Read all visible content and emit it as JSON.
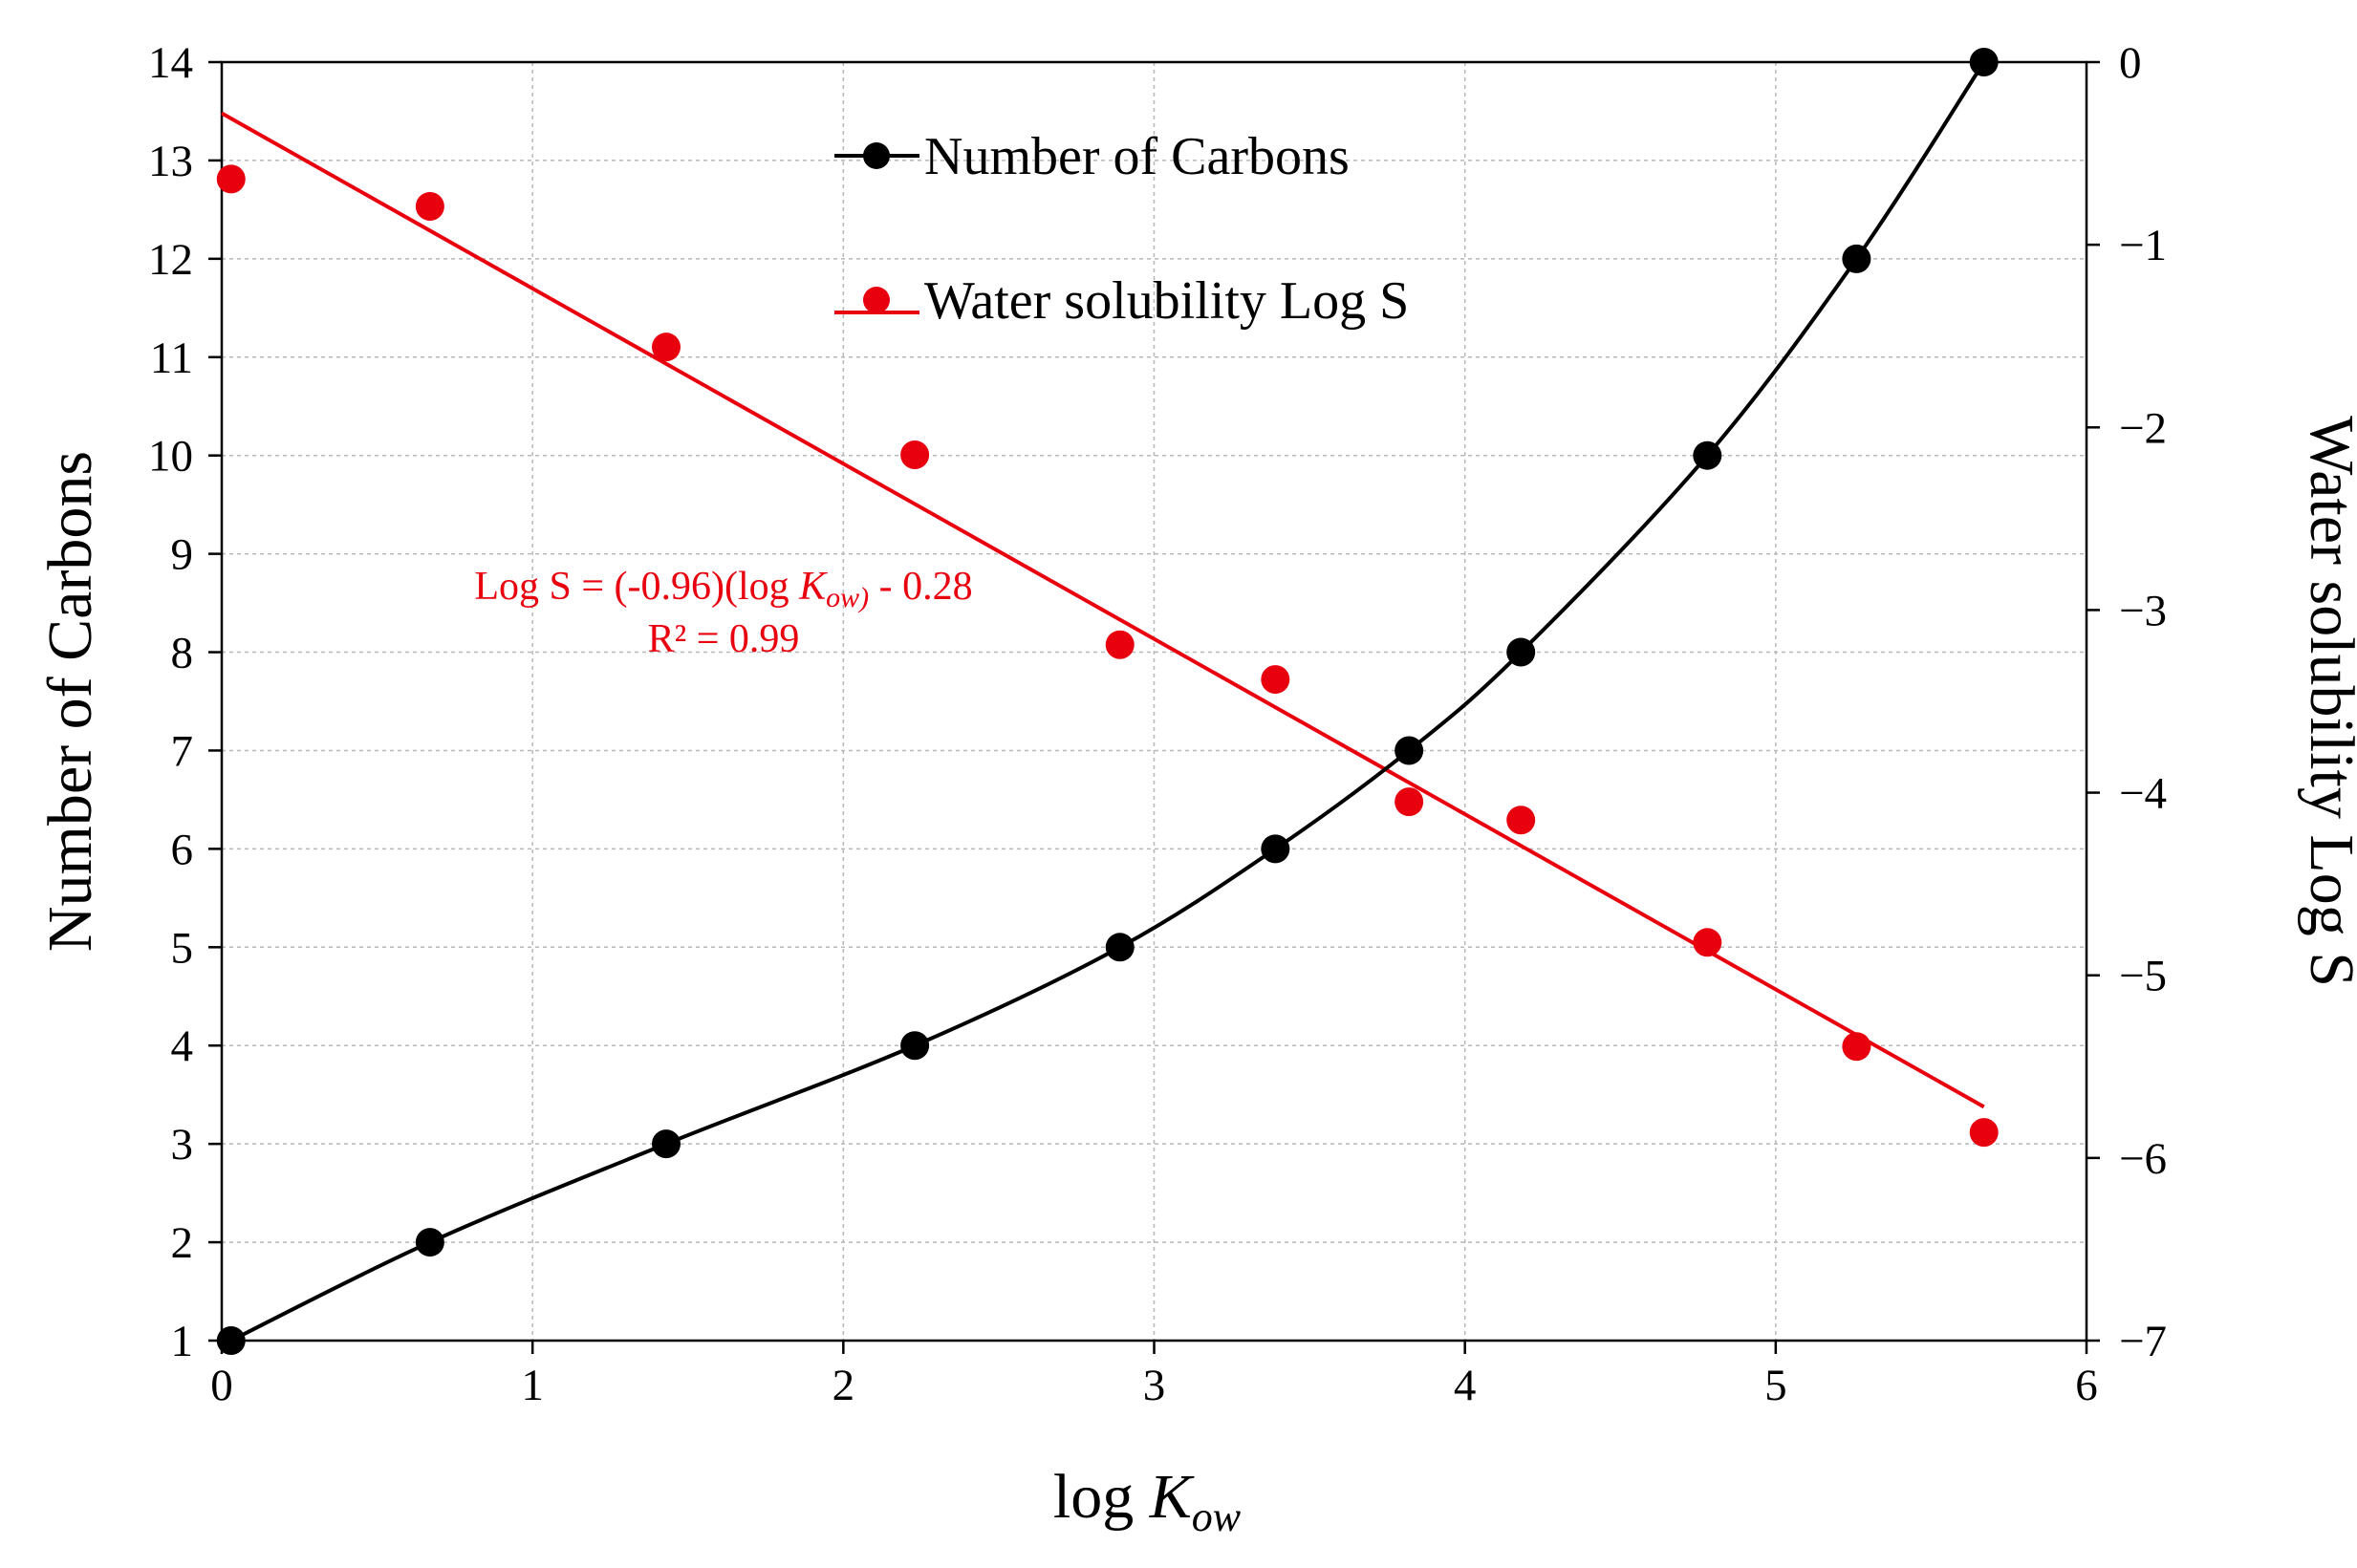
{
  "chart_data": {
    "type": "line",
    "xlabel": "log ",
    "xlabel_italic": "K",
    "xlabel_sub": "ow",
    "ylabel_left": "Number of Carbons",
    "ylabel_right": "Water solubility Log S",
    "xlim": [
      0,
      6
    ],
    "ylim_left": [
      1,
      14
    ],
    "ylim_right": [
      -7,
      0
    ],
    "x_ticks": [
      "0",
      "1",
      "2",
      "3",
      "4",
      "5",
      "6"
    ],
    "y_left_ticks": [
      "1",
      "2",
      "3",
      "4",
      "5",
      "6",
      "7",
      "8",
      "9",
      "10",
      "11",
      "12",
      "13",
      "14"
    ],
    "y_right_ticks": [
      "0",
      "−1",
      "−2",
      "−3",
      "−4",
      "−5",
      "−6",
      "−7"
    ],
    "grid": true,
    "legend": {
      "position": "top-center",
      "entries": [
        "Number of Carbons",
        "Water solubility Log S"
      ]
    },
    "series": [
      {
        "name": "Number of Carbons",
        "axis": "left",
        "color": "#000000",
        "style": "smooth-line-with-markers",
        "x": [
          0.03,
          0.67,
          1.43,
          2.23,
          2.89,
          3.39,
          3.82,
          4.18,
          4.78,
          5.26,
          5.67
        ],
        "y": [
          1,
          2,
          3,
          4,
          5,
          6,
          7,
          8,
          10,
          12,
          14
        ]
      },
      {
        "name": "Water solubility Log S",
        "axis": "right",
        "color": "#e8000f",
        "style": "markers-with-linear-trendline",
        "x": [
          0.03,
          0.67,
          1.43,
          2.23,
          2.89,
          3.39,
          3.82,
          4.18,
          4.78,
          5.26,
          5.67
        ],
        "y": [
          -0.64,
          -0.79,
          -1.56,
          -2.15,
          -3.19,
          -3.38,
          -4.05,
          -4.15,
          -4.82,
          -5.39,
          -5.86
        ]
      }
    ],
    "trendline": {
      "series": "Water solubility Log S",
      "x_range": [
        0,
        5.67
      ],
      "y_at_start": -0.28,
      "y_at_end": -5.72
    },
    "annotation": {
      "equation_prefix": "Log S = (-0.96)(log ",
      "equation_italic": "K",
      "equation_sub": "ow)",
      "equation_suffix": " - 0.28",
      "r_squared": "R² = 0.99"
    }
  }
}
